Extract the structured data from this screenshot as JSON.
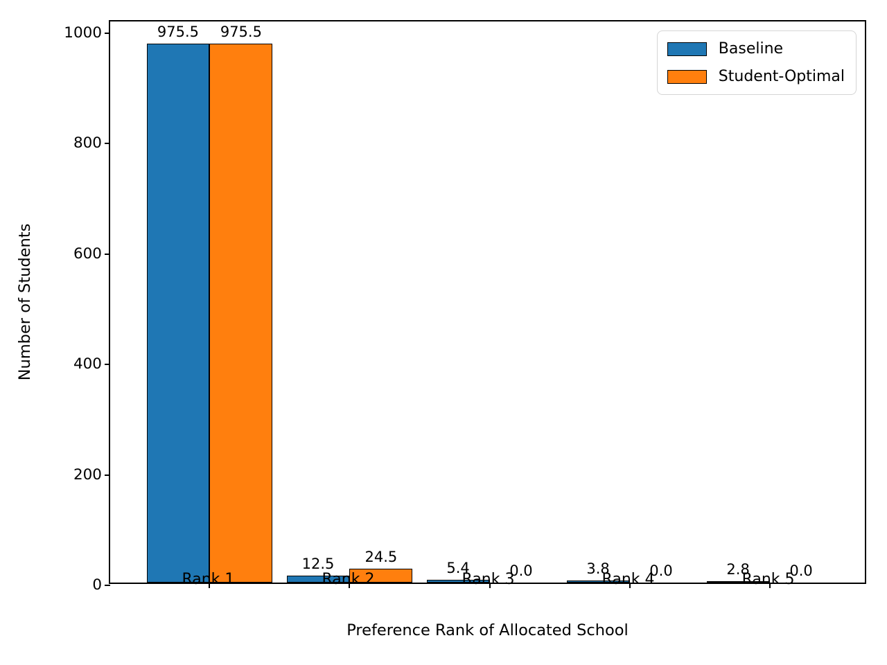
{
  "chart_data": {
    "type": "bar",
    "categories": [
      "Rank 1",
      "Rank 2",
      "Rank 3",
      "Rank 4",
      "Rank 5"
    ],
    "series": [
      {
        "name": "Baseline",
        "color": "#1f77b4",
        "values": [
          975.5,
          12.5,
          5.4,
          3.8,
          2.8
        ]
      },
      {
        "name": "Student-Optimal",
        "color": "#ff7f0e",
        "values": [
          975.5,
          24.5,
          0.0,
          0.0,
          0.0
        ]
      }
    ],
    "bar_value_labels": [
      [
        "975.5",
        "12.5",
        "5.4",
        "3.8",
        "2.8"
      ],
      [
        "975.5",
        "24.5",
        "0.0",
        "0.0",
        "0.0"
      ]
    ],
    "title": "",
    "xlabel": "Preference Rank of Allocated School",
    "ylabel": "Number of Students",
    "yticks": [
      0,
      200,
      400,
      600,
      800,
      1000
    ],
    "ylim": [
      0,
      1021
    ],
    "xlim": [
      -0.71,
      4.7
    ],
    "bar_width_units": 0.45,
    "grid": false,
    "legend_position": "upper right",
    "edge_color": "#000000",
    "background_color": "#ffffff"
  }
}
